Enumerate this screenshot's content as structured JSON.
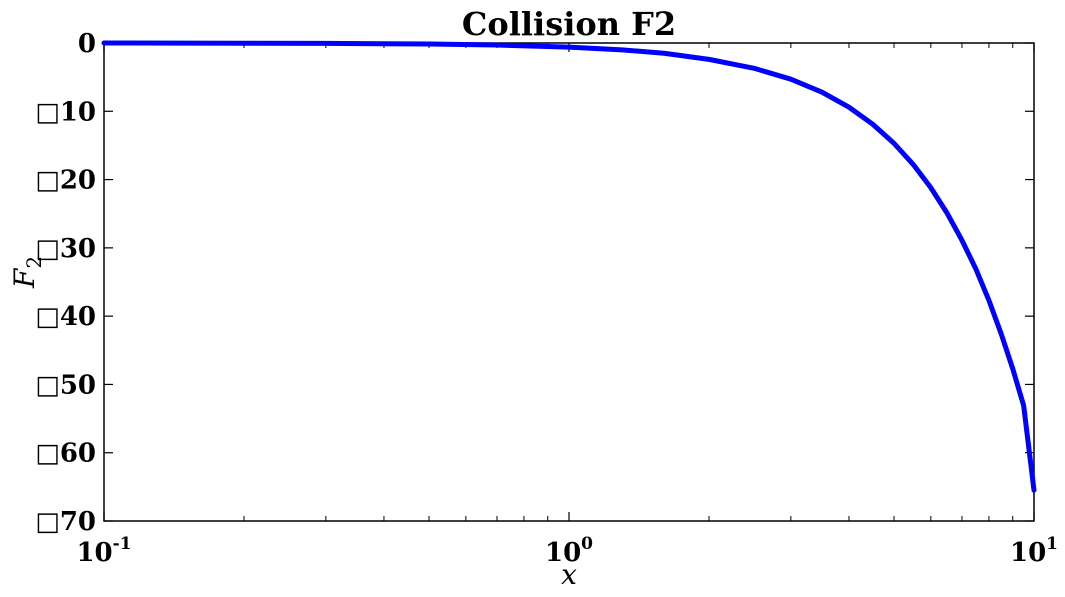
{
  "chart_data": {
    "type": "line",
    "title": "Collision F2",
    "xlabel": "x",
    "ylabel": "F",
    "ylabel_subscript": "2",
    "xscale": "log",
    "xlim": [
      0.1,
      10
    ],
    "ylim": [
      -70,
      0
    ],
    "grid": false,
    "x_ticks": [
      {
        "value": 0.1,
        "base": "10",
        "exp": "-1"
      },
      {
        "value": 1,
        "base": "10",
        "exp": "0"
      },
      {
        "value": 10,
        "base": "10",
        "exp": "1"
      }
    ],
    "y_ticks": [
      {
        "value": 0,
        "label": "0"
      },
      {
        "value": -10,
        "label": "□10"
      },
      {
        "value": -20,
        "label": "□20"
      },
      {
        "value": -30,
        "label": "□30"
      },
      {
        "value": -40,
        "label": "□40"
      },
      {
        "value": -50,
        "label": "□50"
      },
      {
        "value": -60,
        "label": "□60"
      },
      {
        "value": -70,
        "label": "□70"
      }
    ],
    "series": [
      {
        "color": "#0000ff",
        "x": [
          0.1,
          0.2,
          0.3,
          0.5,
          0.7,
          1.0,
          1.3,
          1.6,
          2.0,
          2.5,
          3.0,
          3.5,
          4.0,
          4.5,
          5.0,
          5.5,
          6.0,
          6.5,
          7.0,
          7.5,
          8.0,
          8.5,
          9.0,
          9.5,
          10.0
        ],
        "y": [
          0,
          -0.03,
          -0.06,
          -0.15,
          -0.3,
          -0.6,
          -1.0,
          -1.5,
          -2.4,
          -3.7,
          -5.3,
          -7.2,
          -9.4,
          -11.9,
          -14.7,
          -17.8,
          -21.2,
          -24.9,
          -28.9,
          -33.1,
          -37.7,
          -42.6,
          -47.7,
          -53.1,
          -65.5
        ]
      }
    ]
  }
}
